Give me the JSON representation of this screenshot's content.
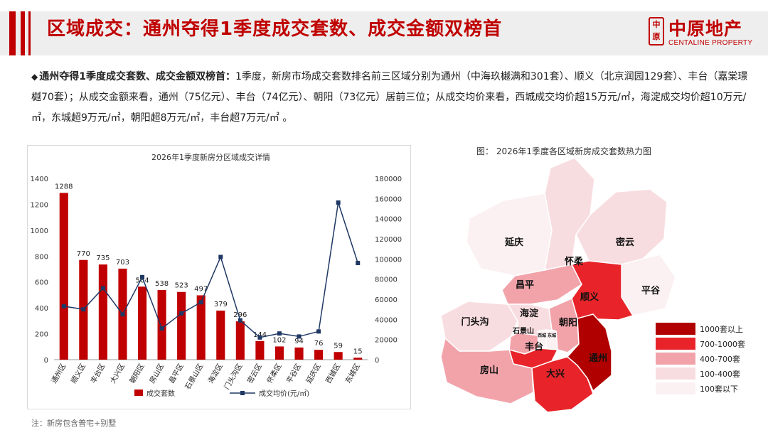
{
  "slide": {
    "title": "区域成交：通州夺得1季度成交套数、成交金额双榜首",
    "footnote": "注：新房包含普宅+别墅"
  },
  "logo": {
    "cn": "中原地产",
    "en": "CENTALINE PROPERTY",
    "mark_top": "中",
    "mark_bottom": "原"
  },
  "summary": {
    "bullet": "◆",
    "lead": "通州夺得1季度成交套数、成交金额双榜首：",
    "text": "1季度，新房市场成交套数排名前三区域分别为通州（中海玖樾满和301套）、顺义（北京润园129套）、丰台（嘉棠璟樾70套）；从成交金额来看，通州（75亿元）、丰台（74亿元）、朝阳（73亿元）居前三位；从成交均价来看，西城成交均价超15万元/㎡，海淀成交均价超10万元/㎡，东城超9万元/㎡，朝阳超8万元/㎡，丰台超7万元/㎡ 。"
  },
  "chart_data": {
    "type": "bar+line",
    "title": "2026年1季度新房分区域成交详情",
    "categories": [
      "通州区",
      "顺义区",
      "丰台区",
      "大兴区",
      "朝阳区",
      "房山区",
      "昌平区",
      "石景山区",
      "海淀区",
      "门头沟区",
      "密云区",
      "怀柔区",
      "平谷区",
      "延庆区",
      "西城区",
      "东城区"
    ],
    "series": [
      {
        "name": "成交套数",
        "type": "bar",
        "axis": "left",
        "color": "#c00000",
        "values": [
          1288,
          770,
          735,
          703,
          564,
          538,
          523,
          497,
          379,
          296,
          144,
          102,
          94,
          76,
          59,
          15
        ],
        "labels": [
          "1288",
          "770",
          "735",
          "703",
          "564",
          "538",
          "523",
          "497",
          "379",
          "296",
          "144",
          "102",
          "94",
          "76",
          "59",
          "15"
        ]
      },
      {
        "name": "成交均价(元/㎡)",
        "type": "line",
        "axis": "right",
        "color": "#1f3864",
        "values": [
          53000,
          50000,
          71000,
          45000,
          82000,
          31000,
          46000,
          57000,
          102000,
          39000,
          22000,
          26000,
          23000,
          28000,
          156000,
          96000
        ]
      }
    ],
    "ylim_left": [
      0,
      1400
    ],
    "yticks_left": [
      0,
      200,
      400,
      600,
      800,
      1000,
      1200,
      1400
    ],
    "ylim_right": [
      0,
      180000
    ],
    "yticks_right": [
      0,
      20000,
      40000,
      60000,
      80000,
      100000,
      120000,
      140000,
      160000,
      180000
    ],
    "legend": {
      "bar_label": "成交套数",
      "line_label": "成交均价(元/㎡)",
      "position": "bottom"
    },
    "grid": false
  },
  "map": {
    "title": "图：  2026年1季度各区域新房成交套数热力图",
    "legend_items": [
      {
        "label": "1000套以上",
        "color": "#b00000"
      },
      {
        "label": "700-1000套",
        "color": "#e8242a"
      },
      {
        "label": "400-700套",
        "color": "#f2a3aa"
      },
      {
        "label": "100-400套",
        "color": "#f8dde0"
      },
      {
        "label": "100套以下",
        "color": "#fbf1f2"
      }
    ],
    "districts": [
      {
        "name": "延庆",
        "color": "#fbf1f2"
      },
      {
        "name": "怀柔",
        "color": "#f8dde0"
      },
      {
        "name": "密云",
        "color": "#f8dde0"
      },
      {
        "name": "平谷",
        "color": "#fbf1f2"
      },
      {
        "name": "昌平",
        "color": "#f2a3aa"
      },
      {
        "name": "顺义",
        "color": "#e8242a"
      },
      {
        "name": "门头沟",
        "color": "#f8dde0"
      },
      {
        "name": "海淀",
        "color": "#f8dde0"
      },
      {
        "name": "朝阳",
        "color": "#f2a3aa"
      },
      {
        "name": "石景山",
        "color": "#f2a3aa"
      },
      {
        "name": "西城",
        "color": "#fbf1f2"
      },
      {
        "name": "东城",
        "color": "#fbf1f2"
      },
      {
        "name": "丰台",
        "color": "#e8242a"
      },
      {
        "name": "房山",
        "color": "#f2a3aa"
      },
      {
        "name": "大兴",
        "color": "#e8242a"
      },
      {
        "name": "通州",
        "color": "#b00000"
      }
    ]
  }
}
